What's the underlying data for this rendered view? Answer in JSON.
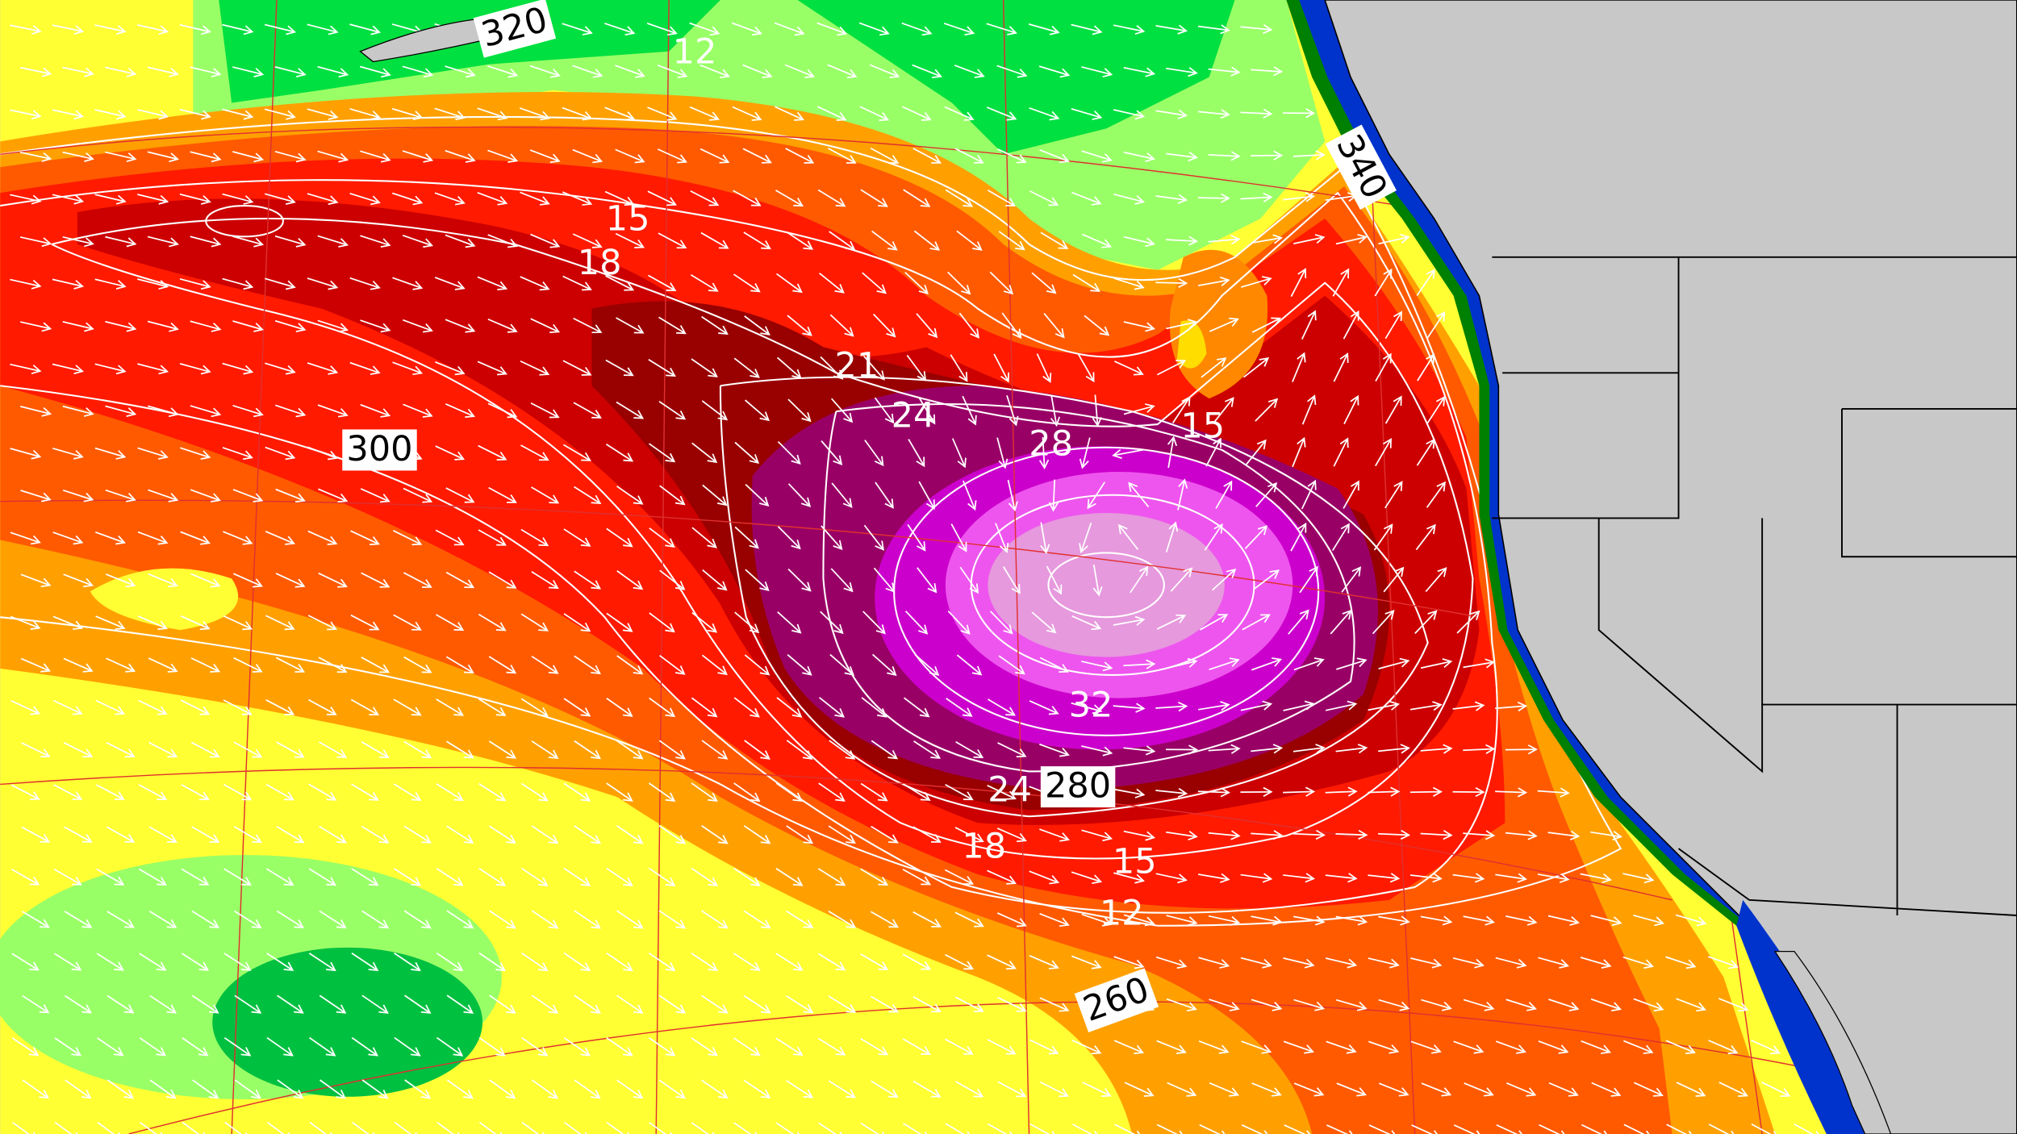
{
  "map": {
    "contour_labels": [
      "12",
      "15",
      "18",
      "21",
      "24",
      "28",
      "32",
      "24",
      "18",
      "15",
      "12",
      "15"
    ],
    "grid_labels": [
      "320",
      "340",
      "300",
      "280",
      "260"
    ]
  }
}
